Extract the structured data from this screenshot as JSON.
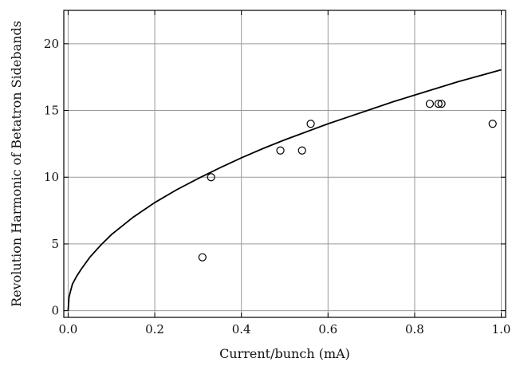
{
  "chart_data": {
    "type": "scatter",
    "title": "",
    "xlabel": "Current/bunch (mA)",
    "ylabel": "Revolution Harmonic of Betatron Sidebands",
    "xlim": [
      -0.01,
      1.01
    ],
    "ylim": [
      -0.5,
      22.5
    ],
    "xticks": [
      0.0,
      0.2,
      0.4,
      0.6,
      0.8,
      1.0
    ],
    "xtick_labels": [
      "0.0",
      "0.2",
      "0.4",
      "0.6",
      "0.8",
      "1.0"
    ],
    "yticks": [
      0,
      5,
      10,
      15,
      20
    ],
    "ytick_labels": [
      "0",
      "5",
      "10",
      "15",
      "20"
    ],
    "grid": true,
    "legend": "none",
    "series": [
      {
        "kind": "line",
        "x": [
          0.0,
          0.002,
          0.005,
          0.01,
          0.02,
          0.03,
          0.05,
          0.075,
          0.1,
          0.15,
          0.2,
          0.25,
          0.3,
          0.35,
          0.4,
          0.45,
          0.5,
          0.55,
          0.6,
          0.65,
          0.7,
          0.75,
          0.8,
          0.85,
          0.9,
          0.95,
          1.0
        ],
        "y": [
          0.0,
          1.0,
          1.4,
          2.0,
          2.6,
          3.1,
          4.0,
          4.9,
          5.7,
          7.0,
          8.1,
          9.05,
          9.9,
          10.7,
          11.45,
          12.15,
          12.8,
          13.4,
          14.0,
          14.55,
          15.1,
          15.65,
          16.15,
          16.65,
          17.15,
          17.6,
          18.05
        ]
      },
      {
        "kind": "scatter",
        "x": [
          0.31,
          0.33,
          0.49,
          0.54,
          0.56,
          0.835,
          0.855,
          0.862,
          0.98
        ],
        "y": [
          4.0,
          10.0,
          12.0,
          12.0,
          14.0,
          15.5,
          15.5,
          15.5,
          14.0
        ]
      }
    ]
  }
}
